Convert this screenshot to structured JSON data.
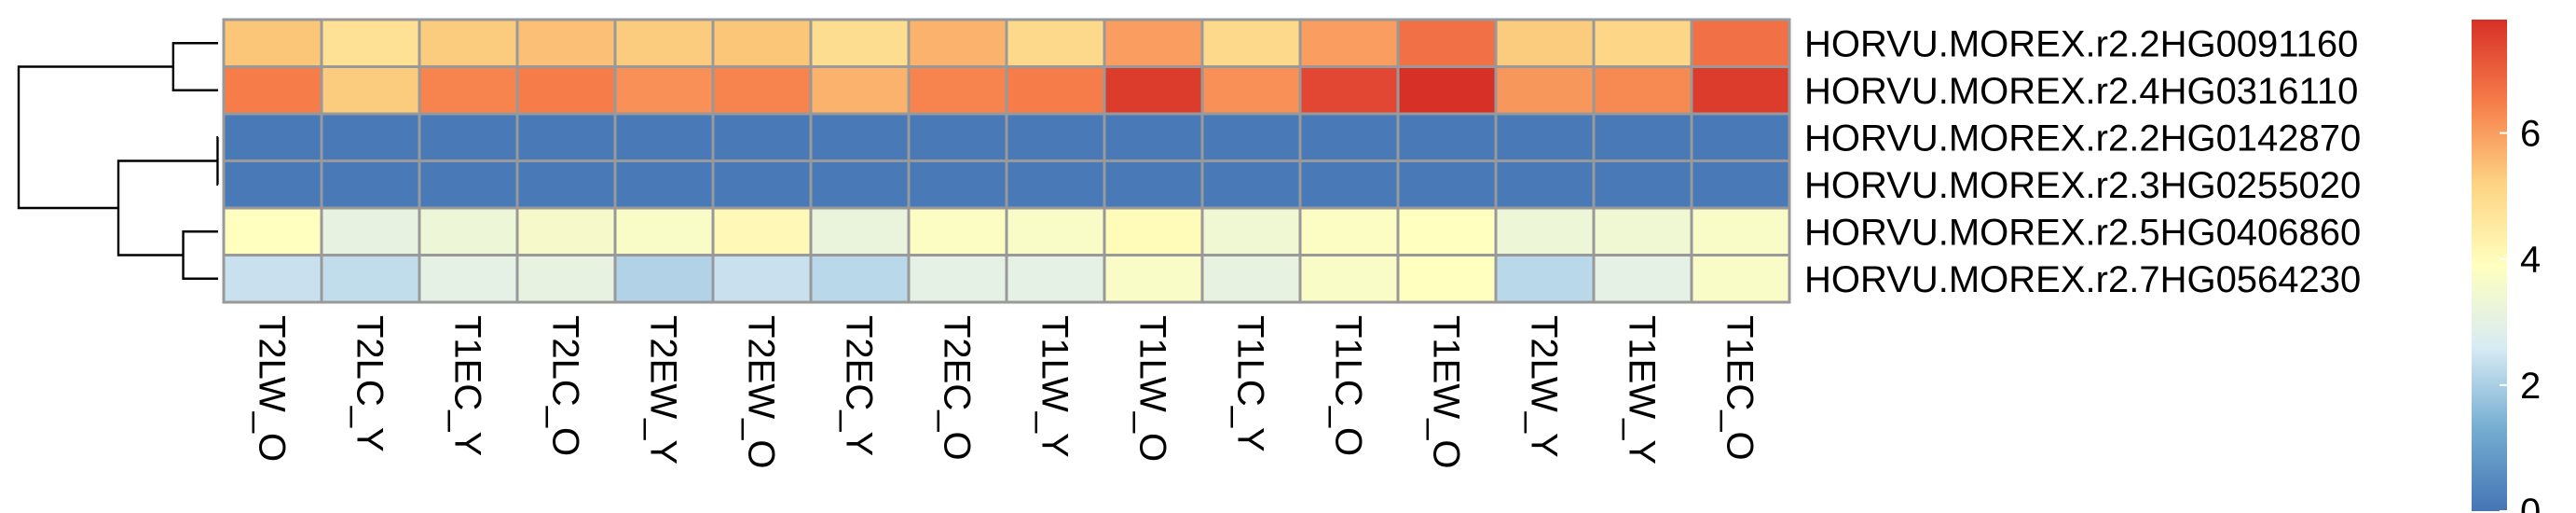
{
  "chart_data": {
    "type": "heatmap",
    "columns": [
      "T2LW_O",
      "T2LC_Y",
      "T1EC_Y",
      "T2LC_O",
      "T2EW_Y",
      "T2EW_O",
      "T2EC_Y",
      "T2EC_O",
      "T1LW_Y",
      "T1LW_O",
      "T1LC_Y",
      "T1LC_O",
      "T1EW_O",
      "T2LW_Y",
      "T1EW_Y",
      "T1EC_O"
    ],
    "rows": [
      "HORVU.MOREX.r2.2HG0091160",
      "HORVU.MOREX.r2.4HG0316110",
      "HORVU.MOREX.r2.2HG0142870",
      "HORVU.MOREX.r2.3HG0255020",
      "HORVU.MOREX.r2.5HG0406860",
      "HORVU.MOREX.r2.7HG0564230"
    ],
    "values": [
      [
        5.4,
        4.8,
        5.3,
        5.5,
        5.3,
        5.4,
        4.9,
        5.7,
        5.0,
        6.0,
        5.0,
        6.0,
        6.7,
        5.3,
        5.1,
        6.7
      ],
      [
        6.5,
        5.3,
        6.4,
        6.5,
        6.2,
        6.4,
        5.7,
        6.4,
        6.5,
        7.6,
        6.2,
        7.4,
        7.8,
        6.1,
        6.3,
        7.6
      ],
      [
        0.1,
        0.1,
        0.1,
        0.1,
        0.1,
        0.1,
        0.1,
        0.1,
        0.1,
        0.1,
        0.1,
        0.1,
        0.1,
        0.1,
        0.1,
        0.1
      ],
      [
        0.1,
        0.1,
        0.1,
        0.1,
        0.1,
        0.1,
        0.1,
        0.1,
        0.1,
        0.1,
        0.1,
        0.1,
        0.1,
        0.1,
        0.1,
        0.1
      ],
      [
        3.9,
        3.1,
        3.3,
        3.6,
        3.7,
        4.1,
        3.2,
        3.8,
        3.7,
        4.0,
        3.4,
        3.8,
        3.9,
        3.3,
        3.4,
        3.7
      ],
      [
        2.4,
        2.3,
        3.0,
        3.1,
        2.1,
        2.4,
        2.2,
        3.0,
        3.0,
        3.7,
        3.1,
        3.7,
        3.9,
        2.2,
        3.0,
        3.7
      ]
    ],
    "color_scale": {
      "min": 0,
      "max": 7.8,
      "stops": [
        {
          "value": 0.0,
          "color": "#4575b4"
        },
        {
          "value": 1.3,
          "color": "#74add1"
        },
        {
          "value": 2.6,
          "color": "#d8ebf4"
        },
        {
          "value": 3.9,
          "color": "#ffffbf"
        },
        {
          "value": 5.2,
          "color": "#fdd382"
        },
        {
          "value": 6.5,
          "color": "#f67c4a"
        },
        {
          "value": 7.8,
          "color": "#d73027"
        }
      ]
    },
    "legend_ticks": [
      0,
      2,
      4,
      6
    ],
    "legend_placement": "right",
    "cell_border_color": "#999999",
    "dendrogram_side": "left",
    "row_dendrogram": {
      "merges": [
        {
          "left": "row:0",
          "right": "row:1",
          "height": 0.9
        },
        {
          "left": "row:4",
          "right": "row:5",
          "height": 0.7
        },
        {
          "left": "row:2",
          "right": "row:3",
          "height": 0.01
        },
        {
          "left": "merge:2",
          "right": "merge:1",
          "height": 2.0
        },
        {
          "left": "merge:0",
          "right": "merge:3",
          "height": 4.0
        }
      ]
    }
  }
}
